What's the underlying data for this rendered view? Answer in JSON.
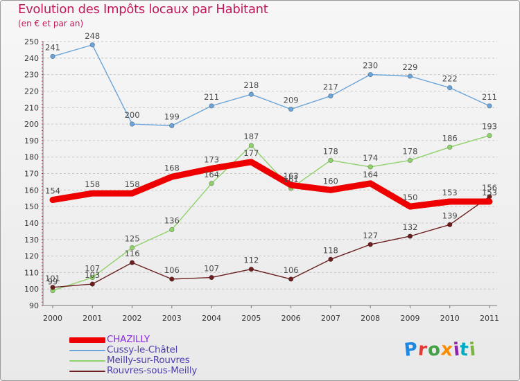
{
  "header": {
    "title": "Evolution des Impôts locaux par Habitant",
    "subtitle": "(en € et par an)"
  },
  "brand": {
    "letters": [
      "P",
      "r",
      "o",
      "x",
      "i",
      "t",
      "i"
    ],
    "colors": [
      "#1e88e5",
      "#e53935",
      "#43a047",
      "#fb8c00",
      "#8e24aa",
      "#00acc1",
      "#7cb342"
    ]
  },
  "chart_data": {
    "type": "line",
    "title": "Evolution des Impôts locaux par Habitant",
    "subtitle": "(en € et par an)",
    "xlabel": "",
    "ylabel": "",
    "x": [
      "2000",
      "2001",
      "2002",
      "2003",
      "2004",
      "2005",
      "2006",
      "2007",
      "2008",
      "2009",
      "2010",
      "2011"
    ],
    "ylim": [
      90,
      250
    ],
    "yticks": [
      90,
      100,
      110,
      120,
      130,
      140,
      150,
      160,
      170,
      180,
      190,
      200,
      210,
      220,
      230,
      240,
      250
    ],
    "grid": "horizontal",
    "legend": "bottom-left",
    "series": [
      {
        "name": "Cussy-le-Châtel",
        "color": "#6aa4d8",
        "values": [
          241,
          248,
          200,
          199,
          211,
          218,
          209,
          217,
          230,
          229,
          222,
          211
        ]
      },
      {
        "name": "Meilly-sur-Rouvres",
        "color": "#8fd16a",
        "values": [
          99,
          107,
          125,
          136,
          164,
          187,
          161,
          178,
          174,
          178,
          186,
          193
        ]
      },
      {
        "name": "Rouvres-sous-Meilly",
        "color": "#6b1f1f",
        "values": [
          101,
          103,
          116,
          106,
          107,
          112,
          106,
          118,
          127,
          132,
          139,
          156
        ]
      },
      {
        "name": "CHAZILLY",
        "color": "#ee0000",
        "values": [
          154,
          158,
          158,
          168,
          173,
          177,
          163,
          160,
          164,
          150,
          153,
          153
        ]
      }
    ],
    "legend_order": [
      "CHAZILLY",
      "Cussy-le-Châtel",
      "Meilly-sur-Rouvres",
      "Rouvres-sous-Meilly"
    ]
  }
}
